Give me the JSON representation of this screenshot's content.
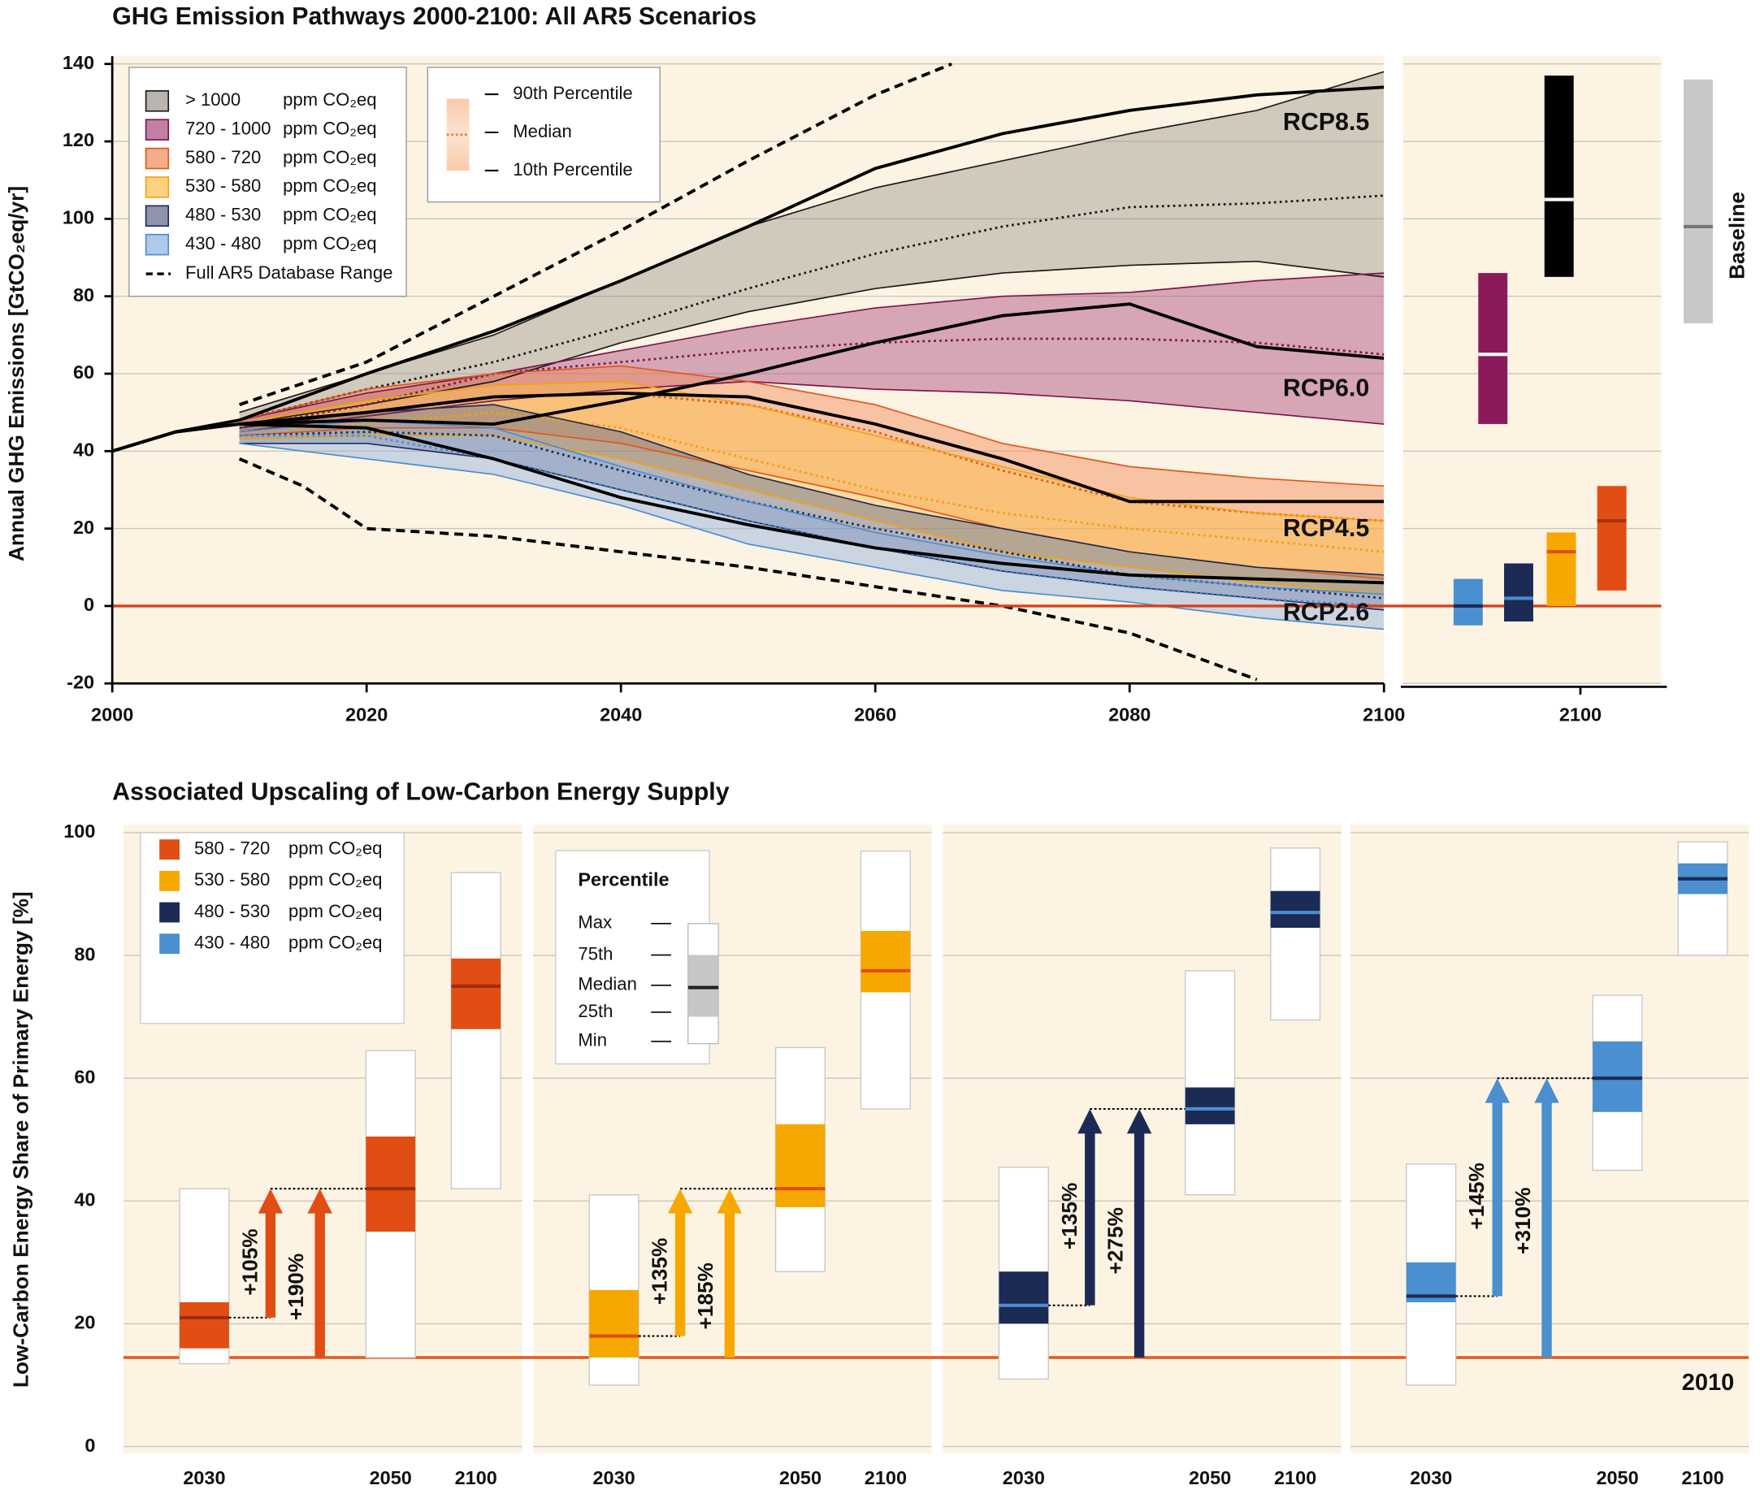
{
  "chart_data": [
    {
      "type": "band",
      "title": "GHG Emission Pathways 2000-2100: All AR5 Scenarios",
      "y_label": "Annual GHG Emissions [GtCO₂eq/yr]",
      "unit": "ppm CO₂eq",
      "xlim": [
        2000,
        2100
      ],
      "xticks": [
        2000,
        2020,
        2040,
        2060,
        2080,
        2100
      ],
      "ylim": [
        -20,
        140
      ],
      "yticks": [
        -20,
        0,
        20,
        40,
        60,
        80,
        100,
        120,
        140
      ],
      "grid": true,
      "reference_line": 0,
      "percentile_legend": [
        "90th Percentile",
        "Median",
        "10th Percentile"
      ],
      "band_x": [
        2010,
        2020,
        2030,
        2040,
        2050,
        2060,
        2070,
        2080,
        2090,
        2100
      ],
      "bands": [
        {
          "name": "> 1000",
          "color": "#9b968c",
          "line_color": "#1a1a1a",
          "p90": [
            50,
            60,
            70,
            84,
            98,
            108,
            115,
            122,
            128,
            138
          ],
          "median": [
            48,
            56,
            63,
            72,
            82,
            91,
            98,
            103,
            104,
            106
          ],
          "p10": [
            47,
            52,
            58,
            68,
            76,
            82,
            86,
            88,
            89,
            85
          ]
        },
        {
          "name": "720 - 1000",
          "color": "#a8497c",
          "line_color": "#7a1650",
          "p90": [
            48,
            55,
            60,
            66,
            72,
            77,
            80,
            81,
            84,
            86
          ],
          "median": [
            46,
            52,
            60,
            63,
            66,
            68,
            69,
            69,
            68,
            65
          ],
          "p10": [
            45,
            49,
            53,
            56,
            58,
            56,
            55,
            53,
            50,
            47
          ]
        },
        {
          "name": "580 - 720",
          "color": "#ef8a55",
          "line_color": "#e0561e",
          "p90": [
            48,
            56,
            60,
            62,
            58,
            52,
            42,
            36,
            33,
            31
          ],
          "median": [
            46,
            50,
            54,
            55,
            52,
            45,
            35,
            27,
            24,
            22
          ],
          "p10": [
            44,
            46,
            46,
            42,
            35,
            28,
            20,
            14,
            10,
            7
          ]
        },
        {
          "name": "530 - 580",
          "color": "#fbbf4a",
          "line_color": "#f2a20c",
          "p90": [
            47,
            53,
            57,
            58,
            52,
            44,
            36,
            28,
            24,
            22
          ],
          "median": [
            45,
            47,
            50,
            46,
            38,
            30,
            24,
            20,
            17,
            14
          ],
          "p10": [
            43,
            44,
            44,
            38,
            30,
            22,
            14,
            10,
            6,
            3
          ]
        },
        {
          "name": "480 - 530",
          "color": "#5f6788",
          "line_color": "#1f2d57",
          "p90": [
            46,
            50,
            52,
            45,
            34,
            26,
            20,
            14,
            10,
            8
          ],
          "median": [
            44,
            45,
            44,
            35,
            27,
            20,
            14,
            8,
            5,
            2
          ],
          "p10": [
            42,
            42,
            38,
            30,
            22,
            15,
            9,
            5,
            2,
            -1
          ]
        },
        {
          "name": "430 - 480",
          "color": "#8fb0e0",
          "line_color": "#4a8dd0",
          "p90": [
            45,
            48,
            46,
            36,
            27,
            19,
            13,
            8,
            5,
            3
          ],
          "median": [
            44,
            44,
            38,
            30,
            22,
            15,
            9,
            5,
            2,
            0
          ],
          "p10": [
            42,
            38,
            34,
            26,
            16,
            10,
            4,
            1,
            -3,
            -6
          ]
        }
      ],
      "lines": [
        {
          "name": "RCP8.5",
          "color": "#000000",
          "x": [
            2000,
            2005,
            2010,
            2020,
            2030,
            2040,
            2050,
            2060,
            2070,
            2080,
            2090,
            2100
          ],
          "values": [
            40,
            45,
            48,
            60,
            71,
            84,
            98,
            113,
            122,
            128,
            132,
            134
          ]
        },
        {
          "name": "RCP6.0",
          "color": "#000000",
          "x": [
            2000,
            2005,
            2010,
            2020,
            2030,
            2040,
            2050,
            2060,
            2070,
            2080,
            2090,
            2100
          ],
          "values": [
            40,
            45,
            47,
            48,
            47,
            53,
            60,
            68,
            75,
            78,
            67,
            64
          ]
        },
        {
          "name": "RCP4.5",
          "color": "#000000",
          "x": [
            2000,
            2005,
            2010,
            2020,
            2030,
            2040,
            2050,
            2060,
            2070,
            2080,
            2090,
            2100
          ],
          "values": [
            40,
            45,
            47,
            50,
            54,
            55,
            54,
            47,
            38,
            27,
            27,
            27
          ]
        },
        {
          "name": "RCP2.6",
          "color": "#000000",
          "x": [
            2000,
            2005,
            2010,
            2020,
            2030,
            2040,
            2050,
            2060,
            2070,
            2080,
            2090,
            2100
          ],
          "values": [
            40,
            45,
            47,
            46,
            38,
            28,
            21,
            15,
            11,
            8,
            7,
            6
          ]
        }
      ],
      "database_range": {
        "name": "Full AR5 Database Range",
        "upper": {
          "x": [
            2010,
            2020,
            2030,
            2040,
            2050,
            2060,
            2066
          ],
          "values": [
            52,
            63,
            80,
            97,
            115,
            132,
            140
          ]
        },
        "lower": {
          "x": [
            2010,
            2015,
            2020,
            2030,
            2040,
            2050,
            2060,
            2070,
            2080,
            2090
          ],
          "values": [
            38,
            31,
            20,
            18,
            14,
            10,
            5,
            0,
            -7,
            -19
          ]
        }
      }
    },
    {
      "type": "range",
      "categories": [
        "2100"
      ],
      "ylim": [
        -20,
        140
      ],
      "items": [
        {
          "color": "#4a8fd0",
          "median_color": "#1c2b55",
          "min": -5,
          "median": 0,
          "max": 7
        },
        {
          "color": "#1c2b55",
          "median_color": "#4a8dd0",
          "min": -4,
          "median": 2,
          "max": 11
        },
        {
          "color": "#f7a800",
          "median_color": "#e04e14",
          "min": 0,
          "median": 14,
          "max": 19
        },
        {
          "color": "#e04e14",
          "median_color": "#a8330f",
          "min": 4,
          "median": 22,
          "max": 31
        },
        {
          "color": "#8b1a5a",
          "median_color": "#ffffff",
          "min": 47,
          "median": 65,
          "max": 86
        },
        {
          "color": "#000000",
          "median_color": "#ffffff",
          "min": 85,
          "median": 105,
          "max": 137
        },
        {
          "label": "Baseline",
          "color": "#c8c8c8",
          "median_color": "#777777",
          "min": 73,
          "median": 98,
          "max": 136
        }
      ]
    },
    {
      "type": "box",
      "title": "Associated Upscaling of Low-Carbon Energy Supply",
      "y_label": "Low-Carbon Energy Share of Primary Energy [%]",
      "unit": "ppm CO₂eq",
      "ylim": [
        0,
        100
      ],
      "yticks": [
        0,
        20,
        40,
        60,
        80,
        100
      ],
      "grid": true,
      "categories": [
        "2030",
        "2050",
        "2100"
      ],
      "reference": {
        "value": 14.5,
        "label": "2010"
      },
      "percentile_legend": {
        "title": "Percentile",
        "labels": [
          "Max",
          "75th",
          "Median",
          "25th",
          "Min"
        ]
      },
      "panels": [
        {
          "name": "580 - 720",
          "color": "#e04e14",
          "median_color": "#9e2d0e",
          "boxes": [
            {
              "min": 13.5,
              "p25": 16,
              "median": 21,
              "p75": 23.5,
              "max": 42
            },
            {
              "min": 14.5,
              "p25": 35,
              "median": 42,
              "p75": 50.5,
              "max": 64.5
            },
            {
              "min": 42,
              "p25": 68,
              "median": 75,
              "p75": 79.5,
              "max": 93.5
            }
          ],
          "arrows": {
            "values": [
              105,
              190
            ],
            "value_labels": [
              "+105%",
              "+190%"
            ]
          }
        },
        {
          "name": "530 - 580",
          "color": "#f7a800",
          "median_color": "#e04e14",
          "boxes": [
            {
              "min": 10,
              "p25": 14.5,
              "median": 18,
              "p75": 25.5,
              "max": 41
            },
            {
              "min": 28.5,
              "p25": 39,
              "median": 42,
              "p75": 52.5,
              "max": 65
            },
            {
              "min": 55,
              "p25": 74,
              "median": 77.5,
              "p75": 84,
              "max": 97
            }
          ],
          "arrows": {
            "values": [
              135,
              185
            ],
            "value_labels": [
              "+135%",
              "+185%"
            ]
          }
        },
        {
          "name": "480 - 530",
          "color": "#1c2b55",
          "median_color": "#4a8dd0",
          "boxes": [
            {
              "min": 11,
              "p25": 20,
              "median": 23,
              "p75": 28.5,
              "max": 45.5
            },
            {
              "min": 41,
              "p25": 52.5,
              "median": 55,
              "p75": 58.5,
              "max": 77.5
            },
            {
              "min": 69.5,
              "p25": 84.5,
              "median": 87,
              "p75": 90.5,
              "max": 97.5
            }
          ],
          "arrows": {
            "values": [
              135,
              275
            ],
            "value_labels": [
              "+135%",
              "+275%"
            ]
          }
        },
        {
          "name": "430 - 480",
          "color": "#4a8fd0",
          "median_color": "#1c2b55",
          "boxes": [
            {
              "min": 10,
              "p25": 23.5,
              "median": 24.5,
              "p75": 30,
              "max": 46
            },
            {
              "min": 45,
              "p25": 54.5,
              "median": 60,
              "p75": 66,
              "max": 73.5
            },
            {
              "min": 80,
              "p25": 90,
              "median": 92.5,
              "p75": 95,
              "max": 98.5
            }
          ],
          "arrows": {
            "values": [
              145,
              310
            ],
            "value_labels": [
              "+145%",
              "+310%"
            ]
          }
        }
      ]
    }
  ]
}
